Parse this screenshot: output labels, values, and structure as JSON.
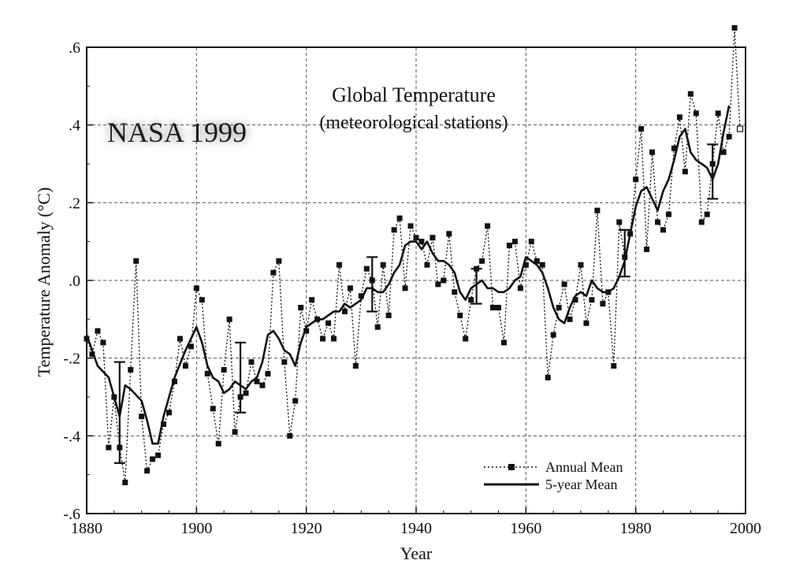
{
  "chart_data": {
    "type": "line",
    "title": "Global Temperature",
    "subtitle": "(meteorological stations)",
    "watermark": "NASA 1999",
    "xlabel": "Year",
    "ylabel": "Temperature Anomaly (°C)",
    "xlim": [
      1880,
      2000
    ],
    "ylim": [
      -0.6,
      0.6
    ],
    "x_ticks": [
      1880,
      1900,
      1920,
      1940,
      1960,
      1980,
      2000
    ],
    "x_tick_labels": [
      "1880",
      "1900",
      "1920",
      "1940",
      "1960",
      "1980",
      "2000"
    ],
    "y_ticks": [
      -0.6,
      -0.4,
      -0.2,
      0.0,
      0.2,
      0.4,
      0.6
    ],
    "y_tick_labels": [
      "-.6",
      "-.4",
      "-.2",
      ".0",
      ".2",
      ".4",
      ".6"
    ],
    "grid": true,
    "legend_position": "bottom-right",
    "series": [
      {
        "name": "Annual Mean",
        "style": "dotted-square-markers",
        "x": [
          1880,
          1881,
          1882,
          1883,
          1884,
          1885,
          1886,
          1887,
          1888,
          1889,
          1890,
          1891,
          1892,
          1893,
          1894,
          1895,
          1896,
          1897,
          1898,
          1899,
          1900,
          1901,
          1902,
          1903,
          1904,
          1905,
          1906,
          1907,
          1908,
          1909,
          1910,
          1911,
          1912,
          1913,
          1914,
          1915,
          1916,
          1917,
          1918,
          1919,
          1920,
          1921,
          1922,
          1923,
          1924,
          1925,
          1926,
          1927,
          1928,
          1929,
          1930,
          1931,
          1932,
          1933,
          1934,
          1935,
          1936,
          1937,
          1938,
          1939,
          1940,
          1941,
          1942,
          1943,
          1944,
          1945,
          1946,
          1947,
          1948,
          1949,
          1950,
          1951,
          1952,
          1953,
          1954,
          1955,
          1956,
          1957,
          1958,
          1959,
          1960,
          1961,
          1962,
          1963,
          1964,
          1965,
          1966,
          1967,
          1968,
          1969,
          1970,
          1971,
          1972,
          1973,
          1974,
          1975,
          1976,
          1977,
          1978,
          1979,
          1980,
          1981,
          1982,
          1983,
          1984,
          1985,
          1986,
          1987,
          1988,
          1989,
          1990,
          1991,
          1992,
          1993,
          1994,
          1995,
          1996,
          1997,
          1998
        ],
        "y": [
          -0.15,
          -0.19,
          -0.13,
          -0.16,
          -0.43,
          -0.3,
          -0.43,
          -0.52,
          -0.23,
          0.05,
          -0.35,
          -0.49,
          -0.46,
          -0.45,
          -0.37,
          -0.34,
          -0.26,
          -0.15,
          -0.22,
          -0.17,
          -0.02,
          -0.05,
          -0.24,
          -0.33,
          -0.42,
          -0.23,
          -0.1,
          -0.39,
          -0.3,
          -0.29,
          -0.21,
          -0.26,
          -0.27,
          -0.24,
          0.02,
          0.05,
          -0.21,
          -0.4,
          -0.31,
          -0.07,
          -0.13,
          -0.05,
          -0.1,
          -0.15,
          -0.11,
          -0.15,
          0.04,
          -0.08,
          -0.02,
          -0.22,
          -0.04,
          0.03,
          0.0,
          -0.12,
          0.04,
          -0.09,
          0.13,
          0.16,
          -0.02,
          0.14,
          0.11,
          0.1,
          0.04,
          0.11,
          -0.01,
          0.0,
          0.12,
          -0.03,
          -0.09,
          -0.15,
          -0.05,
          0.03,
          0.05,
          0.14,
          -0.07,
          -0.07,
          -0.16,
          0.09,
          0.1,
          -0.02,
          0.04,
          0.1,
          0.05,
          0.04,
          -0.25,
          -0.14,
          -0.07,
          -0.01,
          -0.1,
          -0.05,
          0.04,
          -0.11,
          -0.05,
          0.18,
          -0.06,
          -0.03,
          -0.22,
          0.15,
          0.06,
          0.12,
          0.26,
          0.39,
          0.08,
          0.33,
          0.15,
          0.13,
          0.17,
          0.34,
          0.42,
          0.28,
          0.48,
          0.43,
          0.15,
          0.17,
          0.3,
          0.43,
          0.33,
          0.37,
          0.65
        ]
      },
      {
        "name": "5-year Mean",
        "style": "solid",
        "x": [
          1880,
          1882,
          1884,
          1886,
          1887,
          1888,
          1890,
          1891,
          1892,
          1893,
          1894,
          1896,
          1898,
          1900,
          1901,
          1902,
          1903,
          1904,
          1905,
          1906,
          1907,
          1908,
          1909,
          1910,
          1911,
          1912,
          1913,
          1914,
          1915,
          1916,
          1917,
          1918,
          1919,
          1920,
          1921,
          1922,
          1923,
          1924,
          1925,
          1926,
          1927,
          1928,
          1929,
          1930,
          1931,
          1932,
          1933,
          1934,
          1935,
          1936,
          1937,
          1938,
          1939,
          1940,
          1941,
          1942,
          1943,
          1944,
          1945,
          1946,
          1947,
          1948,
          1949,
          1950,
          1951,
          1952,
          1953,
          1954,
          1955,
          1956,
          1957,
          1958,
          1959,
          1960,
          1961,
          1962,
          1963,
          1964,
          1965,
          1966,
          1967,
          1968,
          1969,
          1970,
          1971,
          1972,
          1973,
          1974,
          1975,
          1976,
          1977,
          1978,
          1979,
          1980,
          1981,
          1982,
          1983,
          1984,
          1985,
          1986,
          1987,
          1988,
          1989,
          1990,
          1991,
          1992,
          1993,
          1994,
          1995,
          1996,
          1997
        ],
        "y": [
          -0.14,
          -0.22,
          -0.25,
          -0.35,
          -0.27,
          -0.28,
          -0.31,
          -0.36,
          -0.42,
          -0.42,
          -0.35,
          -0.25,
          -0.18,
          -0.12,
          -0.16,
          -0.22,
          -0.25,
          -0.26,
          -0.29,
          -0.28,
          -0.26,
          -0.27,
          -0.28,
          -0.26,
          -0.25,
          -0.21,
          -0.14,
          -0.13,
          -0.15,
          -0.18,
          -0.19,
          -0.22,
          -0.16,
          -0.12,
          -0.11,
          -0.1,
          -0.1,
          -0.09,
          -0.08,
          -0.08,
          -0.06,
          -0.07,
          -0.06,
          -0.05,
          -0.02,
          -0.02,
          -0.03,
          -0.03,
          -0.01,
          0.02,
          0.04,
          0.09,
          0.1,
          0.1,
          0.08,
          0.1,
          0.07,
          0.05,
          0.05,
          0.04,
          0.02,
          -0.03,
          -0.05,
          -0.02,
          -0.01,
          0.0,
          -0.02,
          -0.02,
          -0.03,
          -0.03,
          -0.02,
          0.0,
          0.01,
          0.06,
          0.05,
          0.04,
          0.02,
          -0.02,
          -0.07,
          -0.1,
          -0.11,
          -0.07,
          -0.04,
          -0.03,
          -0.04,
          0.0,
          -0.02,
          -0.03,
          -0.03,
          -0.02,
          0.01,
          0.05,
          0.12,
          0.19,
          0.23,
          0.24,
          0.21,
          0.18,
          0.23,
          0.26,
          0.31,
          0.37,
          0.39,
          0.33,
          0.31,
          0.3,
          0.29,
          0.26,
          0.3,
          0.38,
          0.45
        ]
      }
    ],
    "error_bars": [
      {
        "x": 1886,
        "y": -0.34,
        "low": -0.47,
        "high": -0.21
      },
      {
        "x": 1908,
        "y": -0.25,
        "low": -0.34,
        "high": -0.16
      },
      {
        "x": 1932,
        "y": -0.01,
        "low": -0.08,
        "high": 0.06
      },
      {
        "x": 1951,
        "y": -0.02,
        "low": -0.06,
        "high": 0.03
      },
      {
        "x": 1978,
        "y": 0.07,
        "low": 0.01,
        "high": 0.13
      },
      {
        "x": 1994,
        "y": 0.28,
        "low": 0.21,
        "high": 0.35
      }
    ],
    "open_marker": {
      "x": 1999,
      "y": 0.39
    },
    "colors": {
      "line": "#111111",
      "grid": "#555555",
      "background": "#ffffff"
    }
  }
}
